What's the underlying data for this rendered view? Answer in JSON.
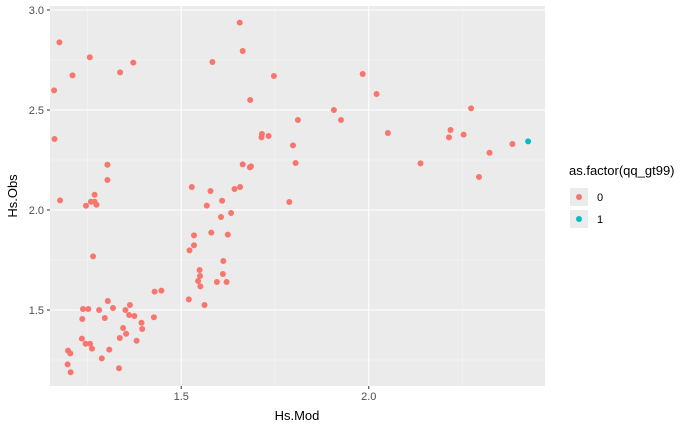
{
  "chart_data": {
    "type": "scatter",
    "xlabel": "Hs.Mod",
    "ylabel": "Hs.Obs",
    "xlim": [
      1.15,
      2.47
    ],
    "ylim": [
      1.12,
      3.02
    ],
    "x_ticks": [
      1.5,
      2.0
    ],
    "y_ticks": [
      1.5,
      2.0,
      2.5,
      3.0
    ],
    "x_tick_labels": [
      "1.5",
      "2.0"
    ],
    "y_tick_labels": [
      "1.5",
      "2.0",
      "2.5",
      "3.0"
    ],
    "grid": true,
    "background": "#ebebeb",
    "legend": {
      "title": "as.factor(qq_gt99)",
      "position": "right",
      "entries": [
        {
          "label": "0",
          "color": "#F8766D"
        },
        {
          "label": "1",
          "color": "#00BFC4"
        }
      ]
    },
    "series": [
      {
        "name": "0",
        "color": "#F8766D",
        "points": [
          [
            1.175,
            2.838
          ],
          [
            1.21,
            2.673
          ],
          [
            1.256,
            2.764
          ],
          [
            1.337,
            2.688
          ],
          [
            1.372,
            2.737
          ],
          [
            1.161,
            2.598
          ],
          [
            1.162,
            2.355
          ],
          [
            1.177,
            2.048
          ],
          [
            1.303,
            2.226
          ],
          [
            1.303,
            2.15
          ],
          [
            1.246,
            2.021
          ],
          [
            1.259,
            2.041
          ],
          [
            1.269,
            2.041
          ],
          [
            1.269,
            2.076
          ],
          [
            1.274,
            2.026
          ],
          [
            1.265,
            1.768
          ],
          [
            1.238,
            1.505
          ],
          [
            1.252,
            1.505
          ],
          [
            1.281,
            1.5
          ],
          [
            1.236,
            1.455
          ],
          [
            1.235,
            1.357
          ],
          [
            1.245,
            1.331
          ],
          [
            1.257,
            1.331
          ],
          [
            1.262,
            1.307
          ],
          [
            1.304,
            1.545
          ],
          [
            1.318,
            1.51
          ],
          [
            1.351,
            1.5
          ],
          [
            1.363,
            1.525
          ],
          [
            1.361,
            1.475
          ],
          [
            1.375,
            1.47
          ],
          [
            1.296,
            1.46
          ],
          [
            1.345,
            1.41
          ],
          [
            1.353,
            1.381
          ],
          [
            1.336,
            1.36
          ],
          [
            1.381,
            1.346
          ],
          [
            1.394,
            1.436
          ],
          [
            1.396,
            1.405
          ],
          [
            1.308,
            1.302
          ],
          [
            1.288,
            1.258
          ],
          [
            1.334,
            1.209
          ],
          [
            1.198,
            1.297
          ],
          [
            1.204,
            1.283
          ],
          [
            1.197,
            1.228
          ],
          [
            1.205,
            1.189
          ],
          [
            1.427,
            1.464
          ],
          [
            1.429,
            1.592
          ],
          [
            1.447,
            1.597
          ],
          [
            1.52,
            1.553
          ],
          [
            1.522,
            1.798
          ],
          [
            1.534,
            1.824
          ],
          [
            1.534,
            1.873
          ],
          [
            1.528,
            2.115
          ],
          [
            1.578,
            2.095
          ],
          [
            1.568,
            2.022
          ],
          [
            1.58,
            1.887
          ],
          [
            1.606,
            1.965
          ],
          [
            1.609,
            2.046
          ],
          [
            1.624,
            1.877
          ],
          [
            1.633,
            1.985
          ],
          [
            1.642,
            2.105
          ],
          [
            1.657,
            2.115
          ],
          [
            1.664,
            2.228
          ],
          [
            1.683,
            2.213
          ],
          [
            1.686,
            2.218
          ],
          [
            1.612,
            1.745
          ],
          [
            1.611,
            1.68
          ],
          [
            1.595,
            1.64
          ],
          [
            1.621,
            1.64
          ],
          [
            1.549,
            1.7
          ],
          [
            1.55,
            1.67
          ],
          [
            1.545,
            1.645
          ],
          [
            1.551,
            1.618
          ],
          [
            1.562,
            1.525
          ],
          [
            1.656,
            2.937
          ],
          [
            1.664,
            2.795
          ],
          [
            1.583,
            2.74
          ],
          [
            1.684,
            2.55
          ],
          [
            1.733,
            2.37
          ],
          [
            1.715,
            2.38
          ],
          [
            1.714,
            2.363
          ],
          [
            1.747,
            2.67
          ],
          [
            1.788,
            2.04
          ],
          [
            1.798,
            2.323
          ],
          [
            1.805,
            2.235
          ],
          [
            1.811,
            2.45
          ],
          [
            1.907,
            2.5
          ],
          [
            1.926,
            2.45
          ],
          [
            1.984,
            2.68
          ],
          [
            2.021,
            2.58
          ],
          [
            2.051,
            2.385
          ],
          [
            2.138,
            2.233
          ],
          [
            2.214,
            2.363
          ],
          [
            2.218,
            2.4
          ],
          [
            2.253,
            2.377
          ],
          [
            2.273,
            2.508
          ],
          [
            2.294,
            2.165
          ],
          [
            2.322,
            2.286
          ],
          [
            2.383,
            2.33
          ]
        ]
      },
      {
        "name": "1",
        "color": "#00BFC4",
        "points": [
          [
            2.425,
            2.343
          ]
        ]
      }
    ]
  }
}
